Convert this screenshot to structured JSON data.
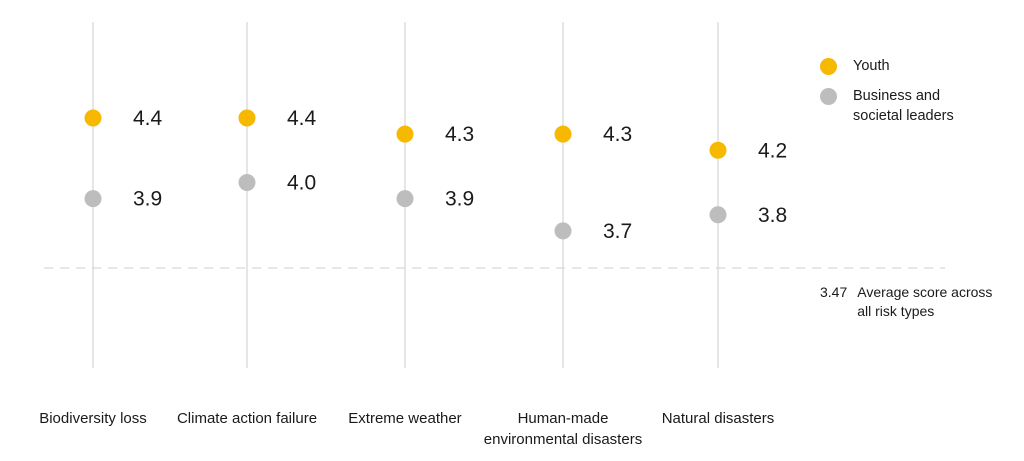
{
  "chart_data": {
    "type": "dumbbell",
    "categories": [
      "Biodiversity loss",
      "Climate action failure",
      "Extreme weather",
      "Human-made environmental disasters",
      "Natural disasters"
    ],
    "category_lines": [
      [
        "Biodiversity loss"
      ],
      [
        "Climate action failure"
      ],
      [
        "Extreme weather"
      ],
      [
        "Human-made",
        "environmental disasters"
      ],
      [
        "Natural disasters"
      ]
    ],
    "series": [
      {
        "name": "Youth",
        "values": [
          4.4,
          4.4,
          4.3,
          4.3,
          4.2
        ],
        "labels": [
          "4.4",
          "4.4",
          "4.3",
          "4.3",
          "4.2"
        ],
        "color": "#f7b800"
      },
      {
        "name": "Business and societal leaders",
        "values": [
          3.9,
          4.0,
          3.9,
          3.7,
          3.8
        ],
        "labels": [
          "3.9",
          "4.0",
          "3.9",
          "3.7",
          "3.8"
        ],
        "color": "#bdbdbd"
      }
    ],
    "reference_line": {
      "value": 3.47,
      "label": "3.47",
      "text": "Average score across all risk types"
    },
    "ylim": [
      3.0,
      5.0
    ],
    "grid": "vertical per category",
    "legend_position": "top-right"
  },
  "legend": [
    {
      "label": "Youth",
      "color": "#f7b800"
    },
    {
      "label": "Business and societal leaders",
      "color": "#bdbdbd"
    }
  ],
  "average": {
    "value": "3.47",
    "label": "Average score across all risk types"
  },
  "colors": {
    "youth": "#f7b800",
    "leaders": "#bdbdbd",
    "grid": "#e6e6e6",
    "dashed": "#d6d6d6"
  }
}
